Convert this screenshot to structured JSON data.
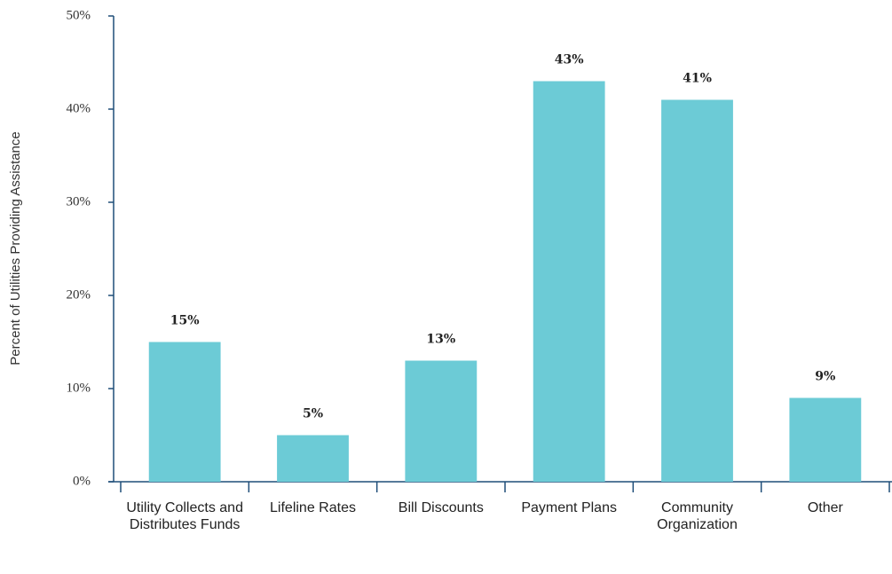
{
  "chart_data": {
    "type": "bar",
    "y_label": "Percent of Utilities Providing Assistance",
    "categories": [
      "Utility Collects and Distributes Funds",
      "Lifeline Rates",
      "Bill Discounts",
      "Payment Plans",
      "Community Organization",
      "Other"
    ],
    "values": [
      15,
      5,
      13,
      43,
      41,
      9
    ],
    "value_labels": [
      "15%",
      "5%",
      "13%",
      "43%",
      "41%",
      "9%"
    ],
    "color": "#6ccbd6",
    "ylim": [
      0,
      50
    ],
    "yticks": [
      {
        "value": 0,
        "label": "0%"
      },
      {
        "value": 10,
        "label": "10%"
      },
      {
        "value": 20,
        "label": "20%"
      },
      {
        "value": 30,
        "label": "30%"
      },
      {
        "value": 40,
        "label": "40%"
      },
      {
        "value": 50,
        "label": "50%"
      }
    ],
    "grid": false
  }
}
